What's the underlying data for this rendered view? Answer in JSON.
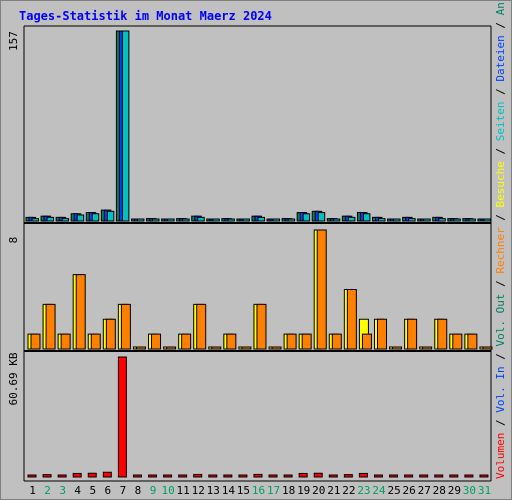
{
  "chart_data": {
    "type": "bar",
    "title": "Tages-Statistik im Monat Maerz 2024",
    "categories": [
      "1",
      "2",
      "3",
      "4",
      "5",
      "6",
      "7",
      "8",
      "9",
      "10",
      "11",
      "12",
      "13",
      "14",
      "15",
      "16",
      "17",
      "18",
      "19",
      "20",
      "21",
      "22",
      "23",
      "24",
      "25",
      "26",
      "27",
      "28",
      "29",
      "30",
      "31"
    ],
    "weekend_days": [
      "2",
      "3",
      "9",
      "10",
      "16",
      "17",
      "23",
      "24",
      "30",
      "31"
    ],
    "panels": {
      "requests": {
        "max_label": "157",
        "ylim": [
          0,
          157
        ],
        "series": [
          {
            "name": "Anfragen",
            "color": "#008060",
            "values": [
              3,
              4,
              3,
              6,
              7,
              9,
              157,
              0,
              2,
              0,
              2,
              4,
              0,
              2,
              0,
              4,
              0,
              2,
              7,
              8,
              2,
              4,
              7,
              3,
              0,
              3,
              0,
              3,
              2,
              2,
              0
            ]
          },
          {
            "name": "Dateien",
            "color": "#0040ff",
            "values": [
              3,
              4,
              3,
              6,
              7,
              9,
              157,
              0,
              2,
              0,
              2,
              4,
              0,
              2,
              0,
              4,
              0,
              2,
              7,
              8,
              2,
              4,
              7,
              3,
              0,
              3,
              0,
              3,
              2,
              2,
              0
            ]
          },
          {
            "name": "Seiten",
            "color": "#00c0c0",
            "values": [
              2,
              3,
              2,
              5,
              6,
              8,
              157,
              0,
              1,
              0,
              1,
              3,
              0,
              1,
              0,
              3,
              0,
              1,
              6,
              7,
              1,
              3,
              6,
              2,
              0,
              2,
              0,
              2,
              1,
              1,
              0
            ]
          }
        ]
      },
      "visits": {
        "max_label": "8",
        "ylim": [
          0,
          8
        ],
        "series": [
          {
            "name": "Besuche",
            "color": "#ffff00",
            "values": [
              1,
              3,
              1,
              5,
              1,
              2,
              3,
              0,
              1,
              0,
              1,
              3,
              0,
              1,
              0,
              3,
              0,
              1,
              1,
              8,
              1,
              4,
              2,
              2,
              0,
              2,
              0,
              2,
              1,
              1,
              0
            ]
          },
          {
            "name": "Rechner",
            "color": "#ff8000",
            "values": [
              1,
              3,
              1,
              5,
              1,
              2,
              3,
              0,
              1,
              0,
              1,
              3,
              0,
              1,
              0,
              3,
              0,
              1,
              1,
              8,
              1,
              4,
              1,
              2,
              0,
              2,
              0,
              2,
              1,
              1,
              0
            ]
          }
        ]
      },
      "volume": {
        "max_label": "60.69 KB",
        "ylim": [
          0,
          60.69
        ],
        "unit": "KB",
        "series": [
          {
            "name": "Volumen",
            "color": "#ff0000",
            "values": [
              1.0,
              1.2,
              1.0,
              1.8,
              1.9,
              2.4,
              60.69,
              0,
              0.8,
              0,
              0.8,
              1.3,
              0,
              0.8,
              0,
              1.3,
              0,
              0.8,
              1.8,
              1.9,
              1.0,
              1.2,
              1.8,
              1.0,
              0,
              0.8,
              0,
              0.9,
              0.8,
              0.8,
              0
            ]
          }
        ]
      }
    },
    "legend": [
      {
        "label": "Volumen",
        "color": "#ff0000"
      },
      {
        "label": "Vol. In",
        "color": "#0040ff"
      },
      {
        "label": "Vol. Out",
        "color": "#008060"
      },
      {
        "label": "Rechner",
        "color": "#ff8000"
      },
      {
        "label": "Besuche",
        "color": "#ffff00"
      },
      {
        "label": "Seiten",
        "color": "#00c0c0"
      },
      {
        "label": "Dateien",
        "color": "#0040ff"
      },
      {
        "label": "Anfragen",
        "color": "#008060"
      }
    ],
    "colors": {
      "background": "#c0c0c0",
      "title": "#0000ff",
      "weekday_label": "#000000",
      "weekend_label": "#00a060",
      "separator": "#000000"
    }
  }
}
